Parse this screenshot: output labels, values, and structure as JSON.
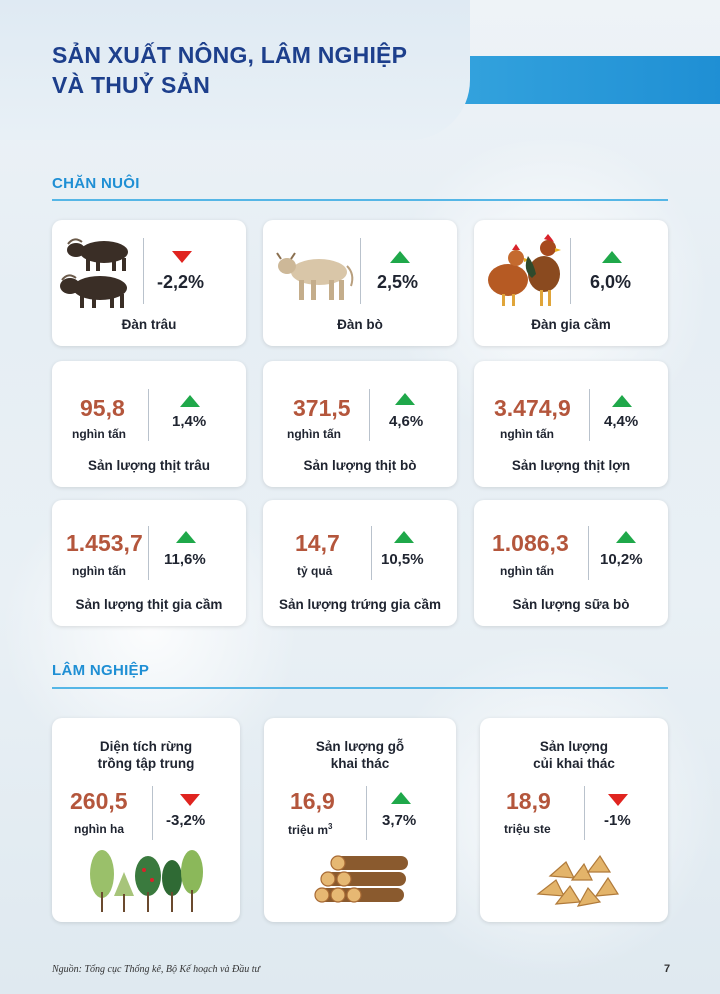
{
  "header": {
    "title_line1": "SẢN XUẤT NÔNG, LÂM NGHIỆP",
    "title_line2": "VÀ THUỶ SẢN"
  },
  "livestock": {
    "section_title": "CHĂN NUÔI",
    "herds": [
      {
        "label": "Đàn trâu",
        "change": "-2,2%",
        "trend": "down",
        "icon": "buffalo-icon"
      },
      {
        "label": "Đàn bò",
        "change": "2,5%",
        "trend": "up",
        "icon": "cow-icon"
      },
      {
        "label": "Đàn gia cầm",
        "change": "6,0%",
        "trend": "up",
        "icon": "chicken-icon"
      }
    ],
    "outputs": [
      {
        "value": "95,8",
        "unit": "nghìn tấn",
        "change": "1,4%",
        "trend": "up",
        "label": "Sản lượng thịt trâu"
      },
      {
        "value": "371,5",
        "unit": "nghìn tấn",
        "change": "4,6%",
        "trend": "up",
        "label": "Sản lượng thịt bò"
      },
      {
        "value": "3.474,9",
        "unit": "nghìn tấn",
        "change": "4,4%",
        "trend": "up",
        "label": "Sản lượng thịt lợn"
      },
      {
        "value": "1.453,7",
        "unit": "nghìn tấn",
        "change": "11,6%",
        "trend": "up",
        "label": "Sản lượng thịt gia cầm"
      },
      {
        "value": "14,7",
        "unit": "tỷ quả",
        "change": "10,5%",
        "trend": "up",
        "label": "Sản lượng trứng gia cầm"
      },
      {
        "value": "1.086,3",
        "unit": "nghìn tấn",
        "change": "10,2%",
        "trend": "up",
        "label": "Sản lượng sữa bò"
      }
    ]
  },
  "forestry": {
    "section_title": "LÂM NGHIỆP",
    "items": [
      {
        "title_line1": "Diện tích rừng",
        "title_line2": "trồng tập trung",
        "value": "260,5",
        "unit": "nghìn ha",
        "unit_sup": "",
        "change": "-3,2%",
        "trend": "down",
        "icon": "trees-icon"
      },
      {
        "title_line1": "Sản lượng gỗ",
        "title_line2": "khai thác",
        "value": "16,9",
        "unit": "triệu m",
        "unit_sup": "3",
        "change": "3,7%",
        "trend": "up",
        "icon": "logs-icon"
      },
      {
        "title_line1": "Sản lượng",
        "title_line2": "củi khai thác",
        "value": "18,9",
        "unit": "triệu ste",
        "unit_sup": "",
        "change": "-1%",
        "trend": "down",
        "icon": "firewood-icon"
      }
    ]
  },
  "footer": {
    "source": "Nguồn: Tổng cục Thống kê, Bộ Kế hoạch và Đầu tư",
    "page_number": "7"
  },
  "colors": {
    "title_blue": "#1d3f8c",
    "accent_blue": "#1f8fd4",
    "value_brown": "#b4563c",
    "up_green": "#1fa84a",
    "down_red": "#e0241f"
  }
}
